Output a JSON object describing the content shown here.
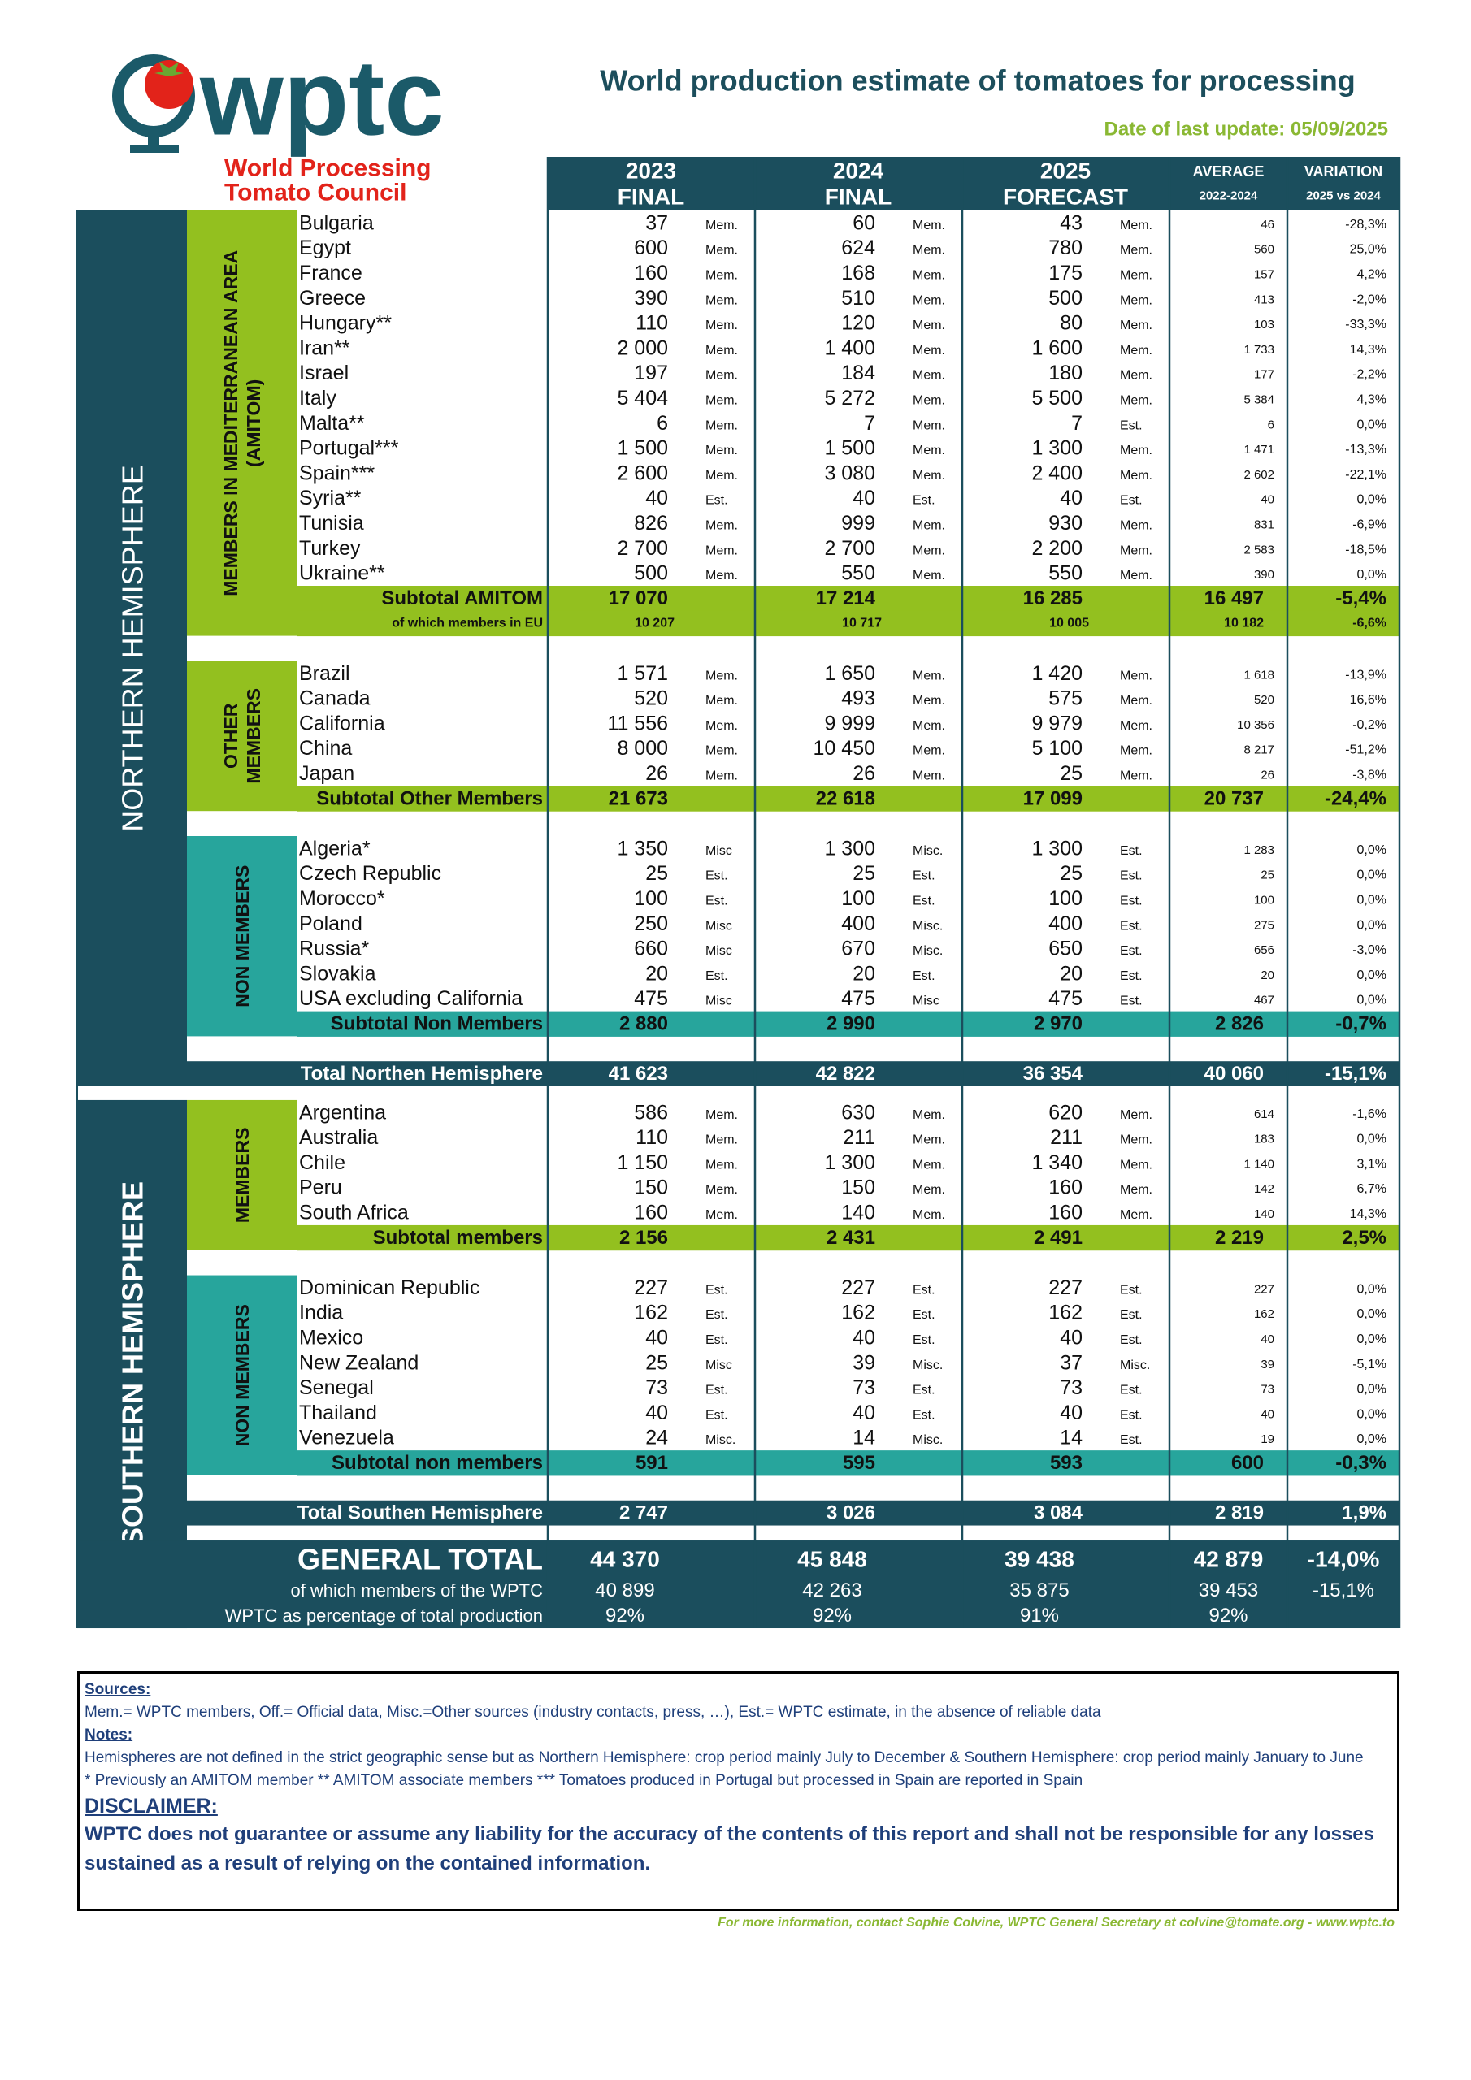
{
  "header": {
    "logo_text": "wptc",
    "org_line1": "World Processing",
    "org_line2": "Tomato Council",
    "title": "World production estimate of tomatoes for processing",
    "last_update": "Date of last update: 05/09/2025"
  },
  "table": {
    "columns": [
      {
        "year": "2023",
        "status": "FINAL"
      },
      {
        "year": "2024",
        "status": "FINAL"
      },
      {
        "year": "2025",
        "status": "FORECAST"
      }
    ],
    "average": {
      "label": "AVERAGE",
      "period": "2022-2024"
    },
    "variation": {
      "label": "VARIATION",
      "period": "2025 vs 2024"
    },
    "hemispheres": [
      {
        "label": "NORTHERN HEMISPHERE",
        "groups": [
          {
            "label": [
              "MEMBERS IN MEDITERRANEAN AREA",
              "(AMITOM)"
            ],
            "color": "#93c01f",
            "rows": [
              [
                "Bulgaria",
                "37",
                "Mem.",
                "60",
                "Mem.",
                "43",
                "Mem.",
                "46",
                "-28,3%"
              ],
              [
                "Egypt",
                "600",
                "Mem.",
                "624",
                "Mem.",
                "780",
                "Mem.",
                "560",
                "25,0%"
              ],
              [
                "France",
                "160",
                "Mem.",
                "168",
                "Mem.",
                "175",
                "Mem.",
                "157",
                "4,2%"
              ],
              [
                "Greece",
                "390",
                "Mem.",
                "510",
                "Mem.",
                "500",
                "Mem.",
                "413",
                "-2,0%"
              ],
              [
                "Hungary**",
                "110",
                "Mem.",
                "120",
                "Mem.",
                "80",
                "Mem.",
                "103",
                "-33,3%"
              ],
              [
                "Iran**",
                "2 000",
                "Mem.",
                "1 400",
                "Mem.",
                "1 600",
                "Mem.",
                "1 733",
                "14,3%"
              ],
              [
                "Israel",
                "197",
                "Mem.",
                "184",
                "Mem.",
                "180",
                "Mem.",
                "177",
                "-2,2%"
              ],
              [
                "Italy",
                "5 404",
                "Mem.",
                "5 272",
                "Mem.",
                "5 500",
                "Mem.",
                "5 384",
                "4,3%"
              ],
              [
                "Malta**",
                "6",
                "Mem.",
                "7",
                "Mem.",
                "7",
                "Est.",
                "6",
                "0,0%"
              ],
              [
                "Portugal***",
                "1 500",
                "Mem.",
                "1 500",
                "Mem.",
                "1 300",
                "Mem.",
                "1 471",
                "-13,3%"
              ],
              [
                "Spain***",
                "2 600",
                "Mem.",
                "3 080",
                "Mem.",
                "2 400",
                "Mem.",
                "2 602",
                "-22,1%"
              ],
              [
                "Syria**",
                "40",
                "Est.",
                "40",
                "Est.",
                "40",
                "Est.",
                "40",
                "0,0%"
              ],
              [
                "Tunisia",
                "826",
                "Mem.",
                "999",
                "Mem.",
                "930",
                "Mem.",
                "831",
                "-6,9%"
              ],
              [
                "Turkey",
                "2 700",
                "Mem.",
                "2 700",
                "Mem.",
                "2 200",
                "Mem.",
                "2 583",
                "-18,5%"
              ],
              [
                "Ukraine**",
                "500",
                "Mem.",
                "550",
                "Mem.",
                "550",
                "Mem.",
                "390",
                "0,0%"
              ]
            ],
            "subtotals": [
              {
                "label": "Subtotal AMITOM",
                "values": [
                  "17 070",
                  "17 214",
                  "16 285",
                  "16 497",
                  "-5,4%"
                ]
              },
              {
                "label": "of which members in EU",
                "values": [
                  "10 207",
                  "10 717",
                  "10 005",
                  "10 182",
                  "-6,6%"
                ]
              }
            ]
          },
          {
            "label": [
              "OTHER",
              "MEMBERS"
            ],
            "color": "#93c01f",
            "rows": [
              [
                "Brazil",
                "1 571",
                "Mem.",
                "1 650",
                "Mem.",
                "1 420",
                "Mem.",
                "1 618",
                "-13,9%"
              ],
              [
                "Canada",
                "520",
                "Mem.",
                "493",
                "Mem.",
                "575",
                "Mem.",
                "520",
                "16,6%"
              ],
              [
                "California",
                "11 556",
                "Mem.",
                "9 999",
                "Mem.",
                "9 979",
                "Mem.",
                "10 356",
                "-0,2%"
              ],
              [
                "China",
                "8 000",
                "Mem.",
                "10 450",
                "Mem.",
                "5 100",
                "Mem.",
                "8 217",
                "-51,2%"
              ],
              [
                "Japan",
                "26",
                "Mem.",
                "26",
                "Mem.",
                "25",
                "Mem.",
                "26",
                "-3,8%"
              ]
            ],
            "subtotals": [
              {
                "label": "Subtotal Other Members",
                "values": [
                  "21 673",
                  "22 618",
                  "17 099",
                  "20 737",
                  "-24,4%"
                ]
              }
            ]
          },
          {
            "label": [
              "NON MEMBERS"
            ],
            "color": "#27a59c",
            "rows": [
              [
                "Algeria*",
                "1 350",
                "Misc",
                "1 300",
                "Misc.",
                "1 300",
                "Est.",
                "1 283",
                "0,0%"
              ],
              [
                "Czech Republic",
                "25",
                "Est.",
                "25",
                "Est.",
                "25",
                "Est.",
                "25",
                "0,0%"
              ],
              [
                "Morocco*",
                "100",
                "Est.",
                "100",
                "Est.",
                "100",
                "Est.",
                "100",
                "0,0%"
              ],
              [
                "Poland",
                "250",
                "Misc",
                "400",
                "Misc.",
                "400",
                "Est.",
                "275",
                "0,0%"
              ],
              [
                "Russia*",
                "660",
                "Misc",
                "670",
                "Misc.",
                "650",
                "Est.",
                "656",
                "-3,0%"
              ],
              [
                "Slovakia",
                "20",
                "Est.",
                "20",
                "Est.",
                "20",
                "Est.",
                "20",
                "0,0%"
              ],
              [
                "USA excluding California",
                "475",
                "Misc",
                "475",
                "Misc",
                "475",
                "Est.",
                "467",
                "0,0%"
              ]
            ],
            "subtotals": [
              {
                "label": "Subtotal Non Members",
                "values": [
                  "2 880",
                  "2 990",
                  "2 970",
                  "2 826",
                  "-0,7%"
                ]
              }
            ]
          }
        ],
        "total": {
          "label": "Total Northen Hemisphere",
          "values": [
            "41 623",
            "42 822",
            "36 354",
            "40 060",
            "-15,1%"
          ]
        }
      },
      {
        "label": "SOUTHERN HEMISPHERE",
        "groups": [
          {
            "label": [
              "MEMBERS"
            ],
            "color": "#93c01f",
            "rows": [
              [
                "Argentina",
                "586",
                "Mem.",
                "630",
                "Mem.",
                "620",
                "Mem.",
                "614",
                "-1,6%"
              ],
              [
                "Australia",
                "110",
                "Mem.",
                "211",
                "Mem.",
                "211",
                "Mem.",
                "183",
                "0,0%"
              ],
              [
                "Chile",
                "1 150",
                "Mem.",
                "1 300",
                "Mem.",
                "1 340",
                "Mem.",
                "1 140",
                "3,1%"
              ],
              [
                "Peru",
                "150",
                "Mem.",
                "150",
                "Mem.",
                "160",
                "Mem.",
                "142",
                "6,7%"
              ],
              [
                "South Africa",
                "160",
                "Mem.",
                "140",
                "Mem.",
                "160",
                "Mem.",
                "140",
                "14,3%"
              ]
            ],
            "subtotals": [
              {
                "label": "Subtotal members",
                "values": [
                  "2 156",
                  "2 431",
                  "2 491",
                  "2 219",
                  "2,5%"
                ]
              }
            ]
          },
          {
            "label": [
              "NON MEMBERS"
            ],
            "color": "#27a59c",
            "rows": [
              [
                "Dominican Republic",
                "227",
                "Est.",
                "227",
                "Est.",
                "227",
                "Est.",
                "227",
                "0,0%"
              ],
              [
                "India",
                "162",
                "Est.",
                "162",
                "Est.",
                "162",
                "Est.",
                "162",
                "0,0%"
              ],
              [
                "Mexico",
                "40",
                "Est.",
                "40",
                "Est.",
                "40",
                "Est.",
                "40",
                "0,0%"
              ],
              [
                "New Zealand",
                "25",
                "Misc",
                "39",
                "Misc.",
                "37",
                "Misc.",
                "39",
                "-5,1%"
              ],
              [
                "Senegal",
                "73",
                "Est.",
                "73",
                "Est.",
                "73",
                "Est.",
                "73",
                "0,0%"
              ],
              [
                "Thailand",
                "40",
                "Est.",
                "40",
                "Est.",
                "40",
                "Est.",
                "40",
                "0,0%"
              ],
              [
                "Venezuela",
                "24",
                "Misc.",
                "14",
                "Misc.",
                "14",
                "Est.",
                "19",
                "0,0%"
              ]
            ],
            "subtotals": [
              {
                "label": "Subtotal non members",
                "values": [
                  "591",
                  "595",
                  "593",
                  "600",
                  "-0,3%"
                ]
              }
            ]
          }
        ],
        "total": {
          "label": "Total Southen Hemisphere",
          "values": [
            "2 747",
            "3 026",
            "3 084",
            "2 819",
            "1,9%"
          ]
        }
      }
    ],
    "general_total": [
      {
        "label": "GENERAL TOTAL",
        "values": [
          "44 370",
          "45 848",
          "39 438",
          "42 879",
          "-14,0%"
        ]
      },
      {
        "label": "of which members of the WPTC",
        "values": [
          "40 899",
          "42 263",
          "35 875",
          "39 453",
          "-15,1%"
        ]
      },
      {
        "label": "WPTC as percentage of total production",
        "values": [
          "92%",
          "92%",
          "91%",
          "92%"
        ]
      }
    ]
  },
  "footer": {
    "sources_heading": "Sources:",
    "sources": "Mem.= WPTC members, Off.= Official data, Misc.=Other sources (industry contacts, press, …), Est.= WPTC estimate, in the absence of reliable data",
    "notes_heading": "Notes:",
    "notes": [
      "Hemispheres are not defined in the strict geographic sense but as Northern Hemisphere: crop period mainly July to December & Southern Hemisphere: crop period mainly January to June",
      "* Previously an AMITOM member ** AMITOM associate members  *** Tomatoes produced in Portugal but processed in Spain are reported in Spain"
    ],
    "disclaimer_heading": "DISCLAIMER:",
    "disclaimer": "WPTC does not guarantee or assume any liability for the accuracy of the contents of this report and shall not be responsible for any losses sustained as a result of relying on the contained information.",
    "contact": "For more information, contact Sophie Colvine, WPTC General Secretary at colvine@tomate.org  - www.wptc.to"
  }
}
